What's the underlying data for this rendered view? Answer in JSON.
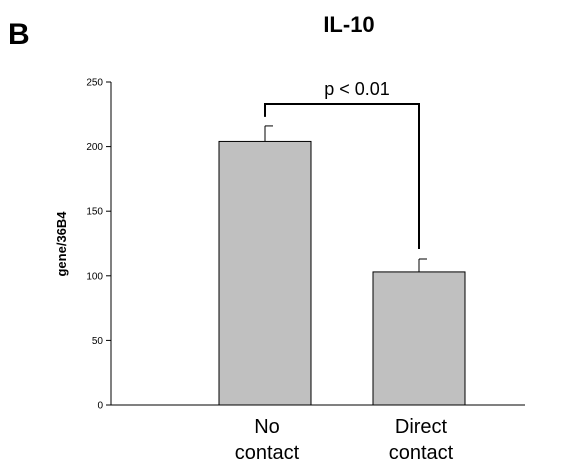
{
  "panel_label": "B",
  "chart_data": {
    "type": "bar",
    "title": "IL-10",
    "xlabel": "",
    "ylabel": "gene/36B4",
    "ylim": [
      0,
      250
    ],
    "yticks": [
      0,
      50,
      100,
      150,
      200,
      250
    ],
    "categories": [
      [
        "No",
        "contact"
      ],
      [
        "Direct",
        "contact"
      ]
    ],
    "values": [
      204,
      103
    ],
    "errors": [
      12,
      10
    ],
    "bar_color": "#c0c0c0",
    "grid": false,
    "legend": "none",
    "significance": {
      "text": "p < 0.01",
      "between": [
        0,
        1
      ]
    }
  }
}
